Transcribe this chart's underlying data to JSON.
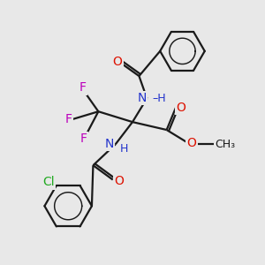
{
  "bg_color": "#e8e8e8",
  "bond_color": "#1a1a1a",
  "bond_width": 1.6,
  "atom_colors": {
    "O": "#dd1100",
    "N": "#2233cc",
    "F": "#bb00bb",
    "Cl": "#22aa22",
    "C": "#1a1a1a",
    "H": "#2233cc"
  },
  "font_size_atom": 10,
  "font_size_small": 9,
  "font_size_ch3": 8.5
}
